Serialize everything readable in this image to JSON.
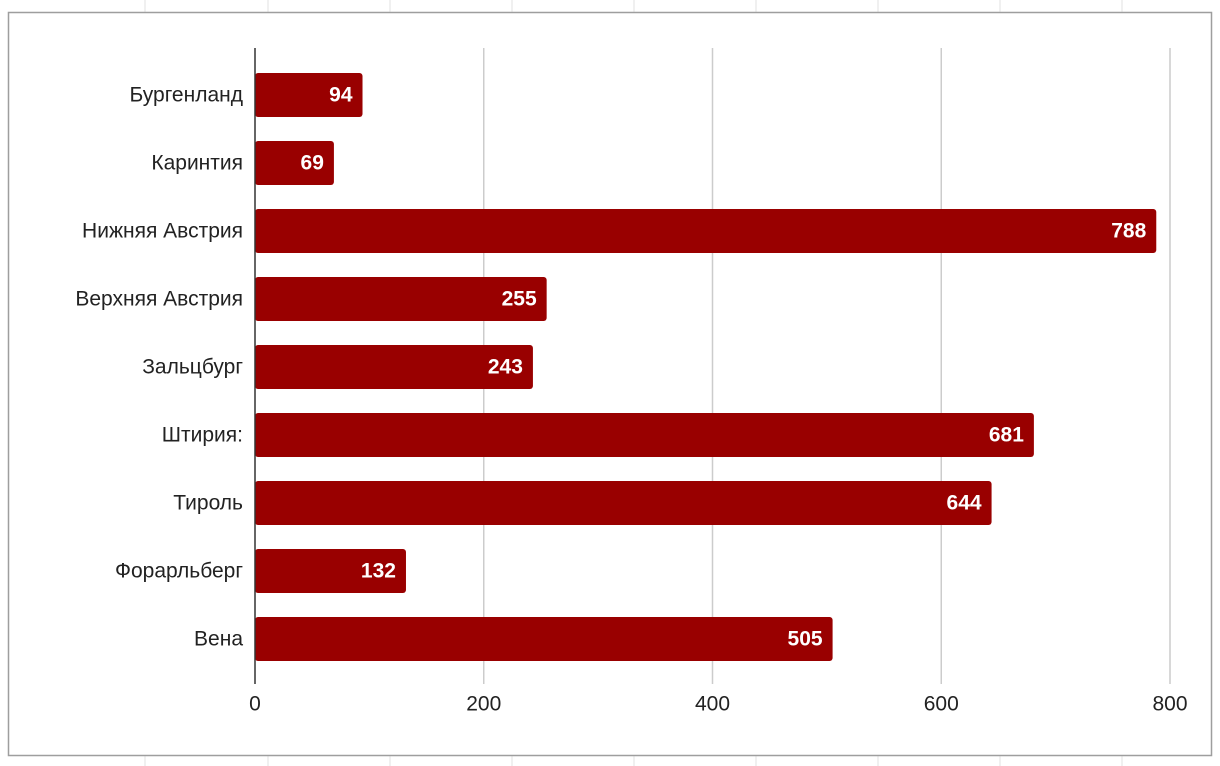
{
  "chart_data": {
    "type": "bar",
    "orientation": "horizontal",
    "categories": [
      "Бургенланд",
      "Каринтия",
      "Нижняя Австрия",
      "Верхняя Австрия",
      "Зальцбург",
      "Штирия:",
      "Тироль",
      "Форарльберг",
      "Вена"
    ],
    "values": [
      94,
      69,
      788,
      255,
      243,
      681,
      644,
      132,
      505
    ],
    "color": "#990000",
    "xlim": [
      0,
      800
    ],
    "xticks": [
      0,
      200,
      400,
      600,
      800
    ],
    "grid": true
  }
}
